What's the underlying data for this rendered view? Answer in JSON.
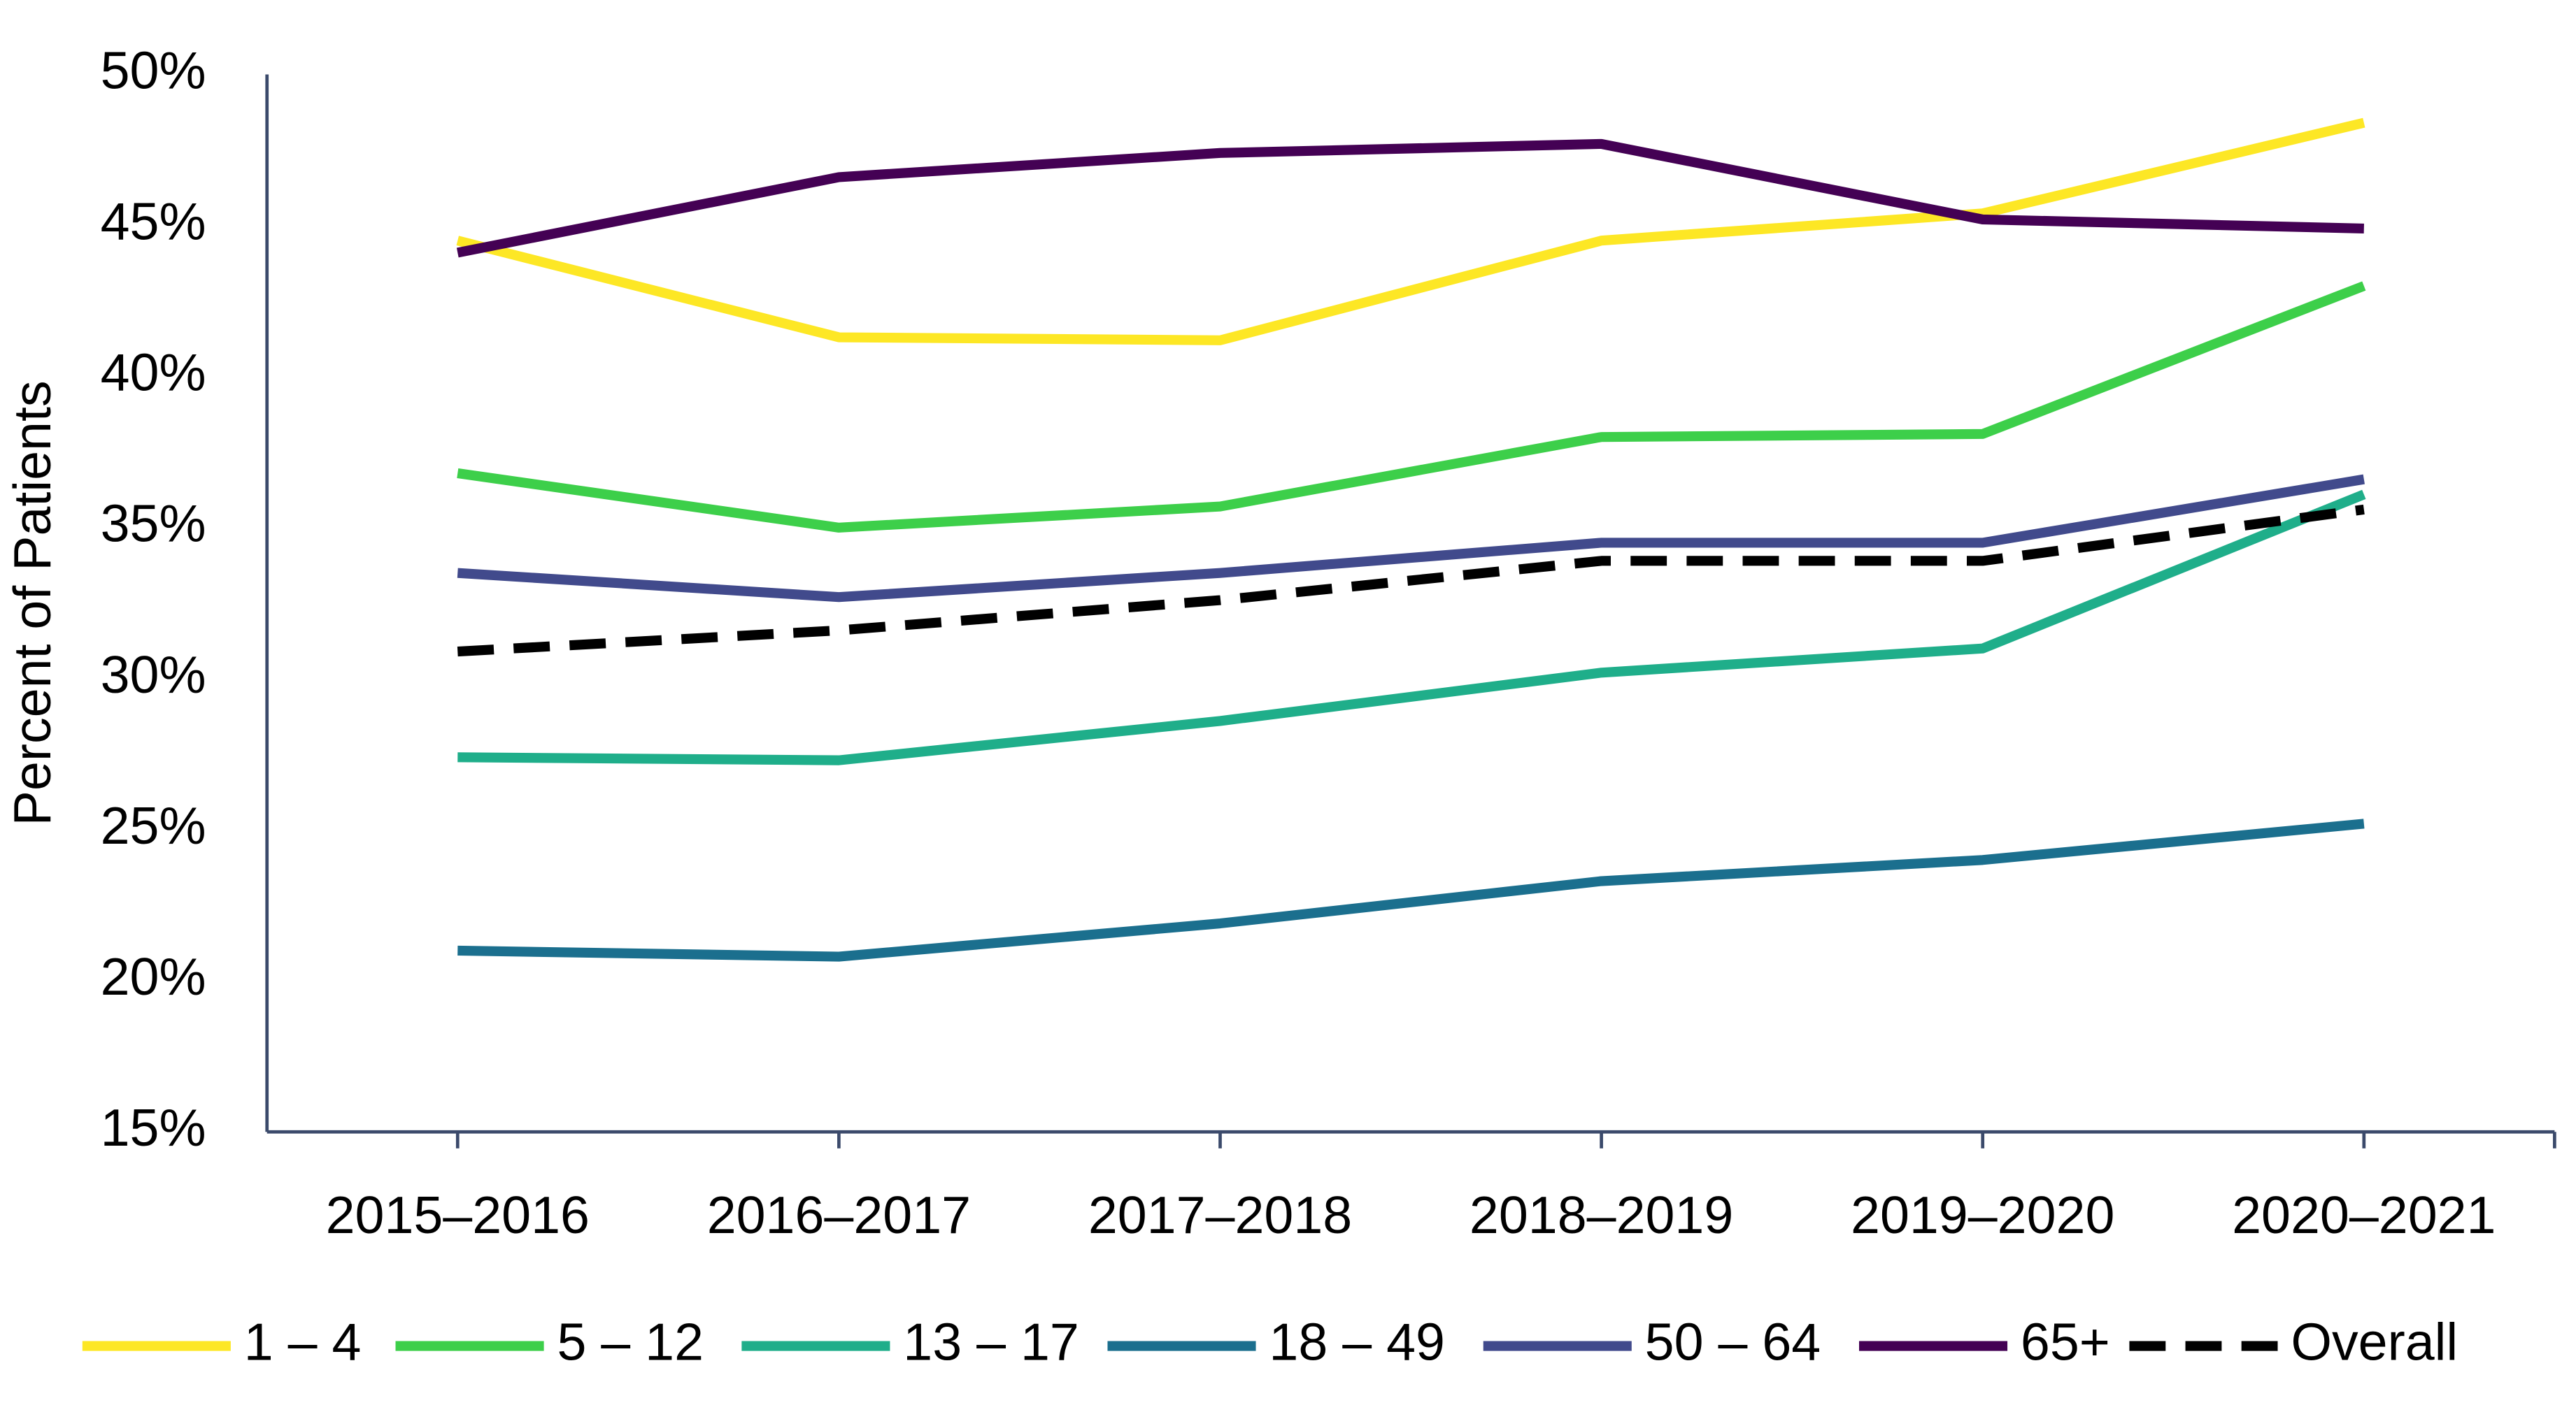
{
  "chart_data": {
    "type": "line",
    "y_label": "Percent of Patients",
    "categories": [
      "2015–2016",
      "2016–2017",
      "2017–2018",
      "2018–2019",
      "2019–2020",
      "2020–2021"
    ],
    "series": [
      {
        "name": "1 – 4",
        "color": "#fde725",
        "values": [
          44.5,
          41.3,
          41.2,
          44.5,
          45.4,
          48.4
        ]
      },
      {
        "name": "5 – 12",
        "color": "#3dcf4a",
        "values": [
          36.8,
          35.0,
          35.7,
          38.0,
          38.1,
          43.0
        ]
      },
      {
        "name": "13 – 17",
        "color": "#1fae8a",
        "values": [
          27.4,
          27.3,
          28.6,
          30.2,
          31.0,
          36.1
        ]
      },
      {
        "name": "18 – 49",
        "color": "#1b6f8e",
        "values": [
          21.0,
          20.8,
          21.9,
          23.3,
          24.0,
          25.2
        ]
      },
      {
        "name": "50 – 64",
        "color": "#414a8c",
        "values": [
          33.5,
          32.7,
          33.5,
          34.5,
          34.5,
          36.6
        ]
      },
      {
        "name": "65+",
        "color": "#440154",
        "values": [
          44.1,
          46.6,
          47.4,
          47.7,
          45.2,
          44.9
        ]
      },
      {
        "name": "Overall",
        "color": "#000000",
        "dashed": true,
        "values": [
          30.9,
          31.6,
          32.6,
          33.9,
          33.9,
          35.6
        ]
      }
    ],
    "ylim": [
      15,
      50
    ],
    "yticks": [
      {
        "value": 15,
        "label": "15%"
      },
      {
        "value": 20,
        "label": "20%"
      },
      {
        "value": 25,
        "label": "25%"
      },
      {
        "value": 30,
        "label": "30%"
      },
      {
        "value": 35,
        "label": "35%"
      },
      {
        "value": 40,
        "label": "40%"
      },
      {
        "value": 45,
        "label": "45%"
      },
      {
        "value": 50,
        "label": "50%"
      }
    ],
    "grid": false,
    "legend": "bottom"
  }
}
